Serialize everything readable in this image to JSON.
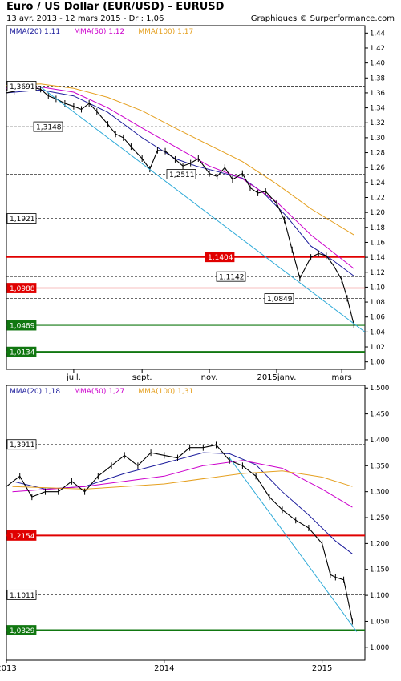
{
  "header": {
    "title": "Euro / US Dollar (EUR/USD) - EURUSD",
    "subtitle": "13 avr. 2013 - 12 mars 2015 - Dr : 1,06",
    "credit": "Graphiques © Surperformance.com"
  },
  "colors": {
    "price": "#000000",
    "mma20": "#1c1c9c",
    "mma50": "#cc00cc",
    "mma100": "#e5a020",
    "trend": "#2eaad8",
    "resistance": "#e00000",
    "support": "#117711",
    "dashed": "#333333"
  },
  "chart_data": [
    {
      "type": "line",
      "period": "daily",
      "ylim": [
        0.99,
        1.45
      ],
      "yticks": [
        1.0,
        1.02,
        1.04,
        1.06,
        1.08,
        1.1,
        1.12,
        1.14,
        1.16,
        1.18,
        1.2,
        1.22,
        1.24,
        1.26,
        1.28,
        1.3,
        1.32,
        1.34,
        1.36,
        1.38,
        1.4,
        1.42,
        1.44
      ],
      "ytick_labels": [
        "1,00",
        "1,02",
        "1,04",
        "1,06",
        "1,08",
        "1,10",
        "1,12",
        "1,14",
        "1,16",
        "1,18",
        "1,20",
        "1,22",
        "1,24",
        "1,26",
        "1,28",
        "1,30",
        "1,32",
        "1,34",
        "1,36",
        "1,38",
        "1,40",
        "1,42",
        "1,44"
      ],
      "xlim": [
        "2014-05-01",
        "2015-03-22"
      ],
      "xticks": [
        {
          "x": "2014-07-01",
          "label": "juil."
        },
        {
          "x": "2014-09-01",
          "label": "sept."
        },
        {
          "x": "2014-11-01",
          "label": "nov."
        },
        {
          "x": "2015-01-01",
          "label": "2015janv."
        },
        {
          "x": "2015-03-01",
          "label": "mars"
        }
      ],
      "legend": [
        {
          "name": "MMA(20)",
          "value": "1,11",
          "color": "#1c1c9c"
        },
        {
          "name": "MMA(50)",
          "value": "1,12",
          "color": "#cc00cc"
        },
        {
          "name": "MMA(100)",
          "value": "1,17",
          "color": "#e5a020"
        }
      ],
      "series": [
        {
          "name": "MMA(20)",
          "color": "#1c1c9c",
          "x": [
            "2014-05-01",
            "2014-06-01",
            "2014-07-01",
            "2014-08-01",
            "2014-09-01",
            "2014-10-01",
            "2014-10-20",
            "2014-11-10",
            "2014-12-01",
            "2014-12-20",
            "2015-01-10",
            "2015-02-01",
            "2015-02-20",
            "2015-03-12"
          ],
          "values": [
            1.36,
            1.364,
            1.356,
            1.334,
            1.3,
            1.272,
            1.262,
            1.254,
            1.246,
            1.226,
            1.195,
            1.155,
            1.137,
            1.115
          ]
        },
        {
          "name": "MMA(50)",
          "color": "#cc00cc",
          "x": [
            "2014-05-01",
            "2014-06-01",
            "2014-07-01",
            "2014-08-01",
            "2014-09-01",
            "2014-10-01",
            "2014-11-01",
            "2014-12-01",
            "2015-01-01",
            "2015-02-01",
            "2015-03-12"
          ],
          "values": [
            1.366,
            1.368,
            1.361,
            1.34,
            1.313,
            1.288,
            1.262,
            1.245,
            1.214,
            1.17,
            1.125
          ]
        },
        {
          "name": "MMA(100)",
          "color": "#e5a020",
          "x": [
            "2014-05-01",
            "2014-06-01",
            "2014-07-01",
            "2014-08-01",
            "2014-09-01",
            "2014-10-01",
            "2014-11-01",
            "2014-12-01",
            "2015-01-01",
            "2015-02-01",
            "2015-03-12"
          ],
          "values": [
            1.37,
            1.372,
            1.366,
            1.354,
            1.336,
            1.313,
            1.29,
            1.268,
            1.238,
            1.205,
            1.17
          ]
        },
        {
          "name": "price",
          "color": "#000000",
          "x": [
            "2014-05-01",
            "2014-05-08",
            "2014-05-15",
            "2014-05-23",
            "2014-06-01",
            "2014-06-08",
            "2014-06-15",
            "2014-06-23",
            "2014-07-01",
            "2014-07-08",
            "2014-07-15",
            "2014-07-22",
            "2014-08-01",
            "2014-08-08",
            "2014-08-15",
            "2014-08-22",
            "2014-09-01",
            "2014-09-08",
            "2014-09-15",
            "2014-09-22",
            "2014-10-01",
            "2014-10-08",
            "2014-10-15",
            "2014-10-22",
            "2014-11-01",
            "2014-11-08",
            "2014-11-15",
            "2014-11-22",
            "2014-12-01",
            "2014-12-08",
            "2014-12-15",
            "2014-12-22",
            "2015-01-01",
            "2015-01-08",
            "2015-01-15",
            "2015-01-22",
            "2015-02-01",
            "2015-02-08",
            "2015-02-15",
            "2015-02-22",
            "2015-03-01",
            "2015-03-06",
            "2015-03-12"
          ],
          "values": [
            1.36,
            1.362,
            1.366,
            1.368,
            1.365,
            1.356,
            1.352,
            1.346,
            1.342,
            1.338,
            1.346,
            1.335,
            1.318,
            1.305,
            1.3,
            1.288,
            1.272,
            1.258,
            1.283,
            1.282,
            1.271,
            1.262,
            1.266,
            1.272,
            1.252,
            1.248,
            1.26,
            1.244,
            1.252,
            1.233,
            1.226,
            1.228,
            1.212,
            1.19,
            1.15,
            1.112,
            1.14,
            1.145,
            1.142,
            1.128,
            1.11,
            1.085,
            1.05
          ]
        },
        {
          "name": "trend",
          "color": "#2eaad8",
          "x": [
            "2014-06-01",
            "2015-03-22"
          ],
          "values": [
            1.368,
            1.04
          ]
        }
      ],
      "levels": [
        {
          "value": 1.3691,
          "label": "1,3691",
          "style": "dashed"
        },
        {
          "value": 1.3148,
          "label": "1,3148",
          "style": "dashed"
        },
        {
          "value": 1.2511,
          "label": "1,2511",
          "style": "dashed"
        },
        {
          "value": 1.1921,
          "label": "1,1921",
          "style": "dashed"
        },
        {
          "value": 1.1404,
          "label": "1,1404",
          "style": "resistance-thick"
        },
        {
          "value": 1.1142,
          "label": "1,1142",
          "style": "dashed"
        },
        {
          "value": 1.0988,
          "label": "1,0988",
          "style": "resistance"
        },
        {
          "value": 1.0849,
          "label": "1,0849",
          "style": "dashed"
        },
        {
          "value": 1.0489,
          "label": "1,0489",
          "style": "support"
        },
        {
          "value": 1.0134,
          "label": "1,0134",
          "style": "support-thick"
        }
      ]
    },
    {
      "type": "line",
      "period": "weekly",
      "ylim": [
        0.975,
        1.505
      ],
      "yticks": [
        1.0,
        1.05,
        1.1,
        1.15,
        1.2,
        1.25,
        1.3,
        1.35,
        1.4,
        1.45,
        1.5
      ],
      "ytick_labels": [
        "1,000",
        "1,050",
        "1,100",
        "1,150",
        "1,200",
        "1,250",
        "1,300",
        "1,350",
        "1,400",
        "1,450",
        "1,500"
      ],
      "xlim": [
        "2013-01-01",
        "2015-04-10"
      ],
      "xticks": [
        {
          "x": "2013-01-01",
          "label": "2013"
        },
        {
          "x": "2014-01-01",
          "label": "2014"
        },
        {
          "x": "2015-01-01",
          "label": "2015"
        }
      ],
      "legend": [
        {
          "name": "MMA(20)",
          "value": "1,18",
          "color": "#1c1c9c"
        },
        {
          "name": "MMA(50)",
          "value": "1,27",
          "color": "#cc00cc"
        },
        {
          "name": "MMA(100)",
          "value": "1,31",
          "color": "#e5a020"
        }
      ],
      "series": [
        {
          "name": "MMA(20)",
          "color": "#1c1c9c",
          "x": [
            "2013-01-15",
            "2013-04-01",
            "2013-07-01",
            "2013-10-01",
            "2014-01-01",
            "2014-04-01",
            "2014-06-01",
            "2014-08-01",
            "2014-10-01",
            "2014-12-01",
            "2015-02-01",
            "2015-03-12"
          ],
          "values": [
            1.32,
            1.305,
            1.31,
            1.335,
            1.355,
            1.375,
            1.373,
            1.352,
            1.3,
            1.255,
            1.205,
            1.18
          ]
        },
        {
          "name": "MMA(50)",
          "color": "#cc00cc",
          "x": [
            "2013-01-15",
            "2013-07-01",
            "2014-01-01",
            "2014-04-01",
            "2014-07-01",
            "2014-10-01",
            "2015-01-01",
            "2015-03-12"
          ],
          "values": [
            1.3,
            1.31,
            1.33,
            1.35,
            1.36,
            1.345,
            1.305,
            1.27
          ]
        },
        {
          "name": "MMA(100)",
          "color": "#e5a020",
          "x": [
            "2013-01-15",
            "2013-07-01",
            "2014-01-01",
            "2014-07-01",
            "2014-10-01",
            "2015-01-01",
            "2015-03-12"
          ],
          "values": [
            1.31,
            1.305,
            1.315,
            1.335,
            1.34,
            1.328,
            1.31
          ]
        },
        {
          "name": "price",
          "color": "#000000",
          "x": [
            "2013-01-01",
            "2013-02-01",
            "2013-03-01",
            "2013-04-01",
            "2013-05-01",
            "2013-06-01",
            "2013-07-01",
            "2013-08-01",
            "2013-09-01",
            "2013-10-01",
            "2013-11-01",
            "2013-12-01",
            "2014-01-01",
            "2014-02-01",
            "2014-03-01",
            "2014-04-01",
            "2014-05-01",
            "2014-06-01",
            "2014-07-01",
            "2014-08-01",
            "2014-09-01",
            "2014-10-01",
            "2014-11-01",
            "2014-12-01",
            "2015-01-01",
            "2015-01-20",
            "2015-02-01",
            "2015-02-20",
            "2015-03-12"
          ],
          "values": [
            1.31,
            1.33,
            1.29,
            1.3,
            1.3,
            1.32,
            1.3,
            1.33,
            1.35,
            1.37,
            1.35,
            1.375,
            1.37,
            1.365,
            1.385,
            1.385,
            1.39,
            1.36,
            1.35,
            1.33,
            1.29,
            1.265,
            1.245,
            1.23,
            1.2,
            1.14,
            1.135,
            1.13,
            1.05
          ]
        },
        {
          "name": "trend",
          "color": "#2eaad8",
          "x": [
            "2014-06-01",
            "2015-03-22"
          ],
          "values": [
            1.365,
            1.03
          ]
        }
      ],
      "levels": [
        {
          "value": 1.3911,
          "label": "1,3911",
          "style": "dashed"
        },
        {
          "value": 1.2154,
          "label": "1,2154",
          "style": "resistance-thick"
        },
        {
          "value": 1.1011,
          "label": "1,1011",
          "style": "dashed"
        },
        {
          "value": 1.0329,
          "label": "1,0329",
          "style": "support-thick"
        }
      ]
    }
  ]
}
